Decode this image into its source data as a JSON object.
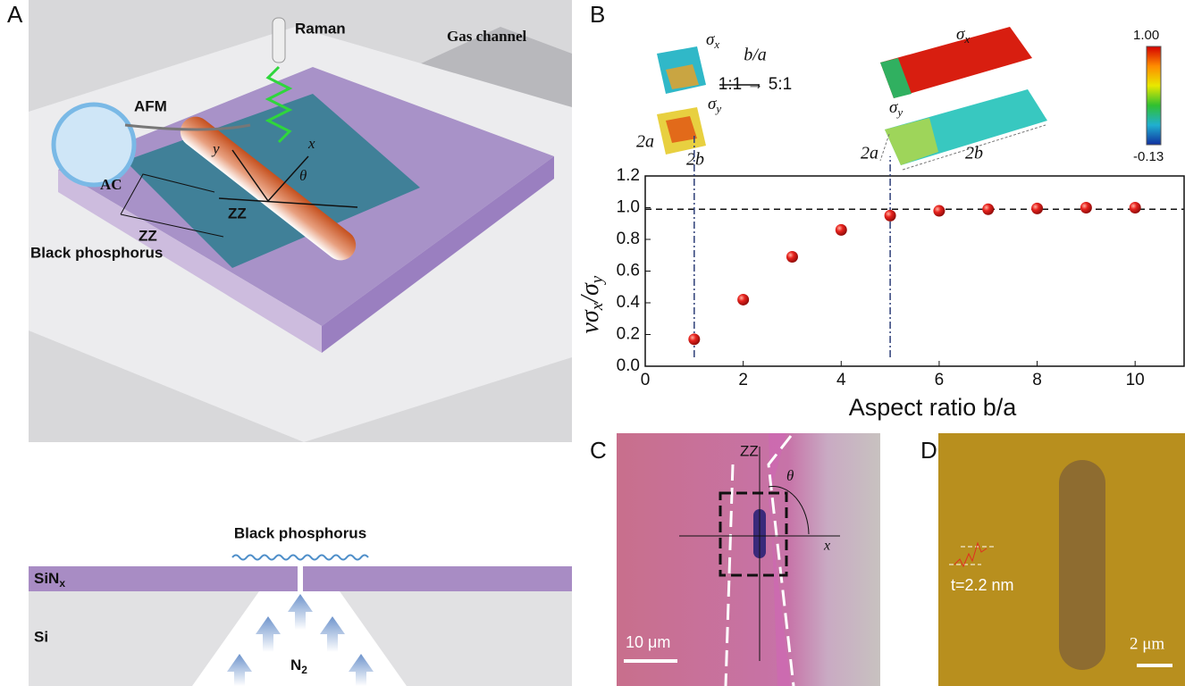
{
  "chart_data": {
    "type": "scatter",
    "x": [
      1,
      2,
      3,
      4,
      5,
      6,
      7,
      8,
      9,
      10
    ],
    "series": [
      {
        "color": "#e8231e",
        "values": [
          0.17,
          0.42,
          0.69,
          0.86,
          0.95,
          0.98,
          0.99,
          0.995,
          1.0,
          1.0
        ]
      }
    ],
    "xlim": [
      0,
      11
    ],
    "ylim": [
      0,
      1.2
    ],
    "xticks": [
      0,
      2,
      4,
      6,
      8,
      10
    ],
    "yticks": [
      {
        "value": 0,
        "label": "0.0"
      },
      0.2,
      0.4,
      0.6,
      0.8,
      {
        "value": 1,
        "label": "1.0"
      },
      1.2
    ],
    "xlabel": "Aspect ratio b/a",
    "ylabel": [
      "νσ",
      "x",
      "/σ",
      "y"
    ],
    "reference_y": 0.99,
    "reference_x": [
      1,
      5
    ]
  },
  "panels": {
    "a": {
      "letter": "A",
      "raman": "Raman",
      "gas_channel": "Gas channel",
      "afm": "AFM",
      "x": "x",
      "y": "y",
      "theta": "θ",
      "zz_rod": "ZZ",
      "ac": "AC",
      "zz_edge": "ZZ",
      "material": "Black phosphorus",
      "cross_section": {
        "material": "Black phosphorus",
        "sinx": [
          "SiN",
          "x"
        ],
        "si": "Si",
        "n2": [
          "N",
          "2"
        ]
      }
    },
    "b": {
      "letter": "B",
      "sigma_x_left": [
        "σ",
        "x"
      ],
      "sigma_y_left": [
        "σ",
        "y"
      ],
      "ratio": "b/a",
      "ratio_change": "1:1 → 5:1",
      "sigma_x_right": [
        "σ",
        "x"
      ],
      "sigma_y_right": [
        "σ",
        "y"
      ],
      "a_left": "2a",
      "b_left": "2b",
      "a_right": "2a",
      "b_right": "2b",
      "colorbar_max": "1.00",
      "colorbar_min": "-0.13"
    },
    "c": {
      "letter": "C",
      "zz": "ZZ",
      "theta": "θ",
      "x": "x",
      "scale": "10 μm"
    },
    "d": {
      "letter": "D",
      "thickness": "t=2.2 nm",
      "scale": "2 μm"
    }
  }
}
